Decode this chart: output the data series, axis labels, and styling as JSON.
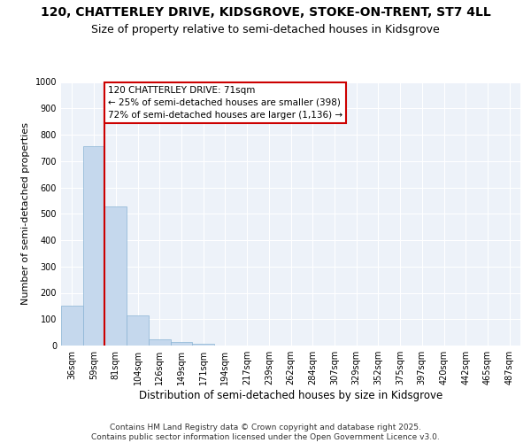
{
  "title": "120, CHATTERLEY DRIVE, KIDSGROVE, STOKE-ON-TRENT, ST7 4LL",
  "subtitle": "Size of property relative to semi-detached houses in Kidsgrove",
  "xlabel": "Distribution of semi-detached houses by size in Kidsgrove",
  "ylabel": "Number of semi-detached properties",
  "bin_labels": [
    "36sqm",
    "59sqm",
    "81sqm",
    "104sqm",
    "126sqm",
    "149sqm",
    "171sqm",
    "194sqm",
    "217sqm",
    "239sqm",
    "262sqm",
    "284sqm",
    "307sqm",
    "329sqm",
    "352sqm",
    "375sqm",
    "397sqm",
    "420sqm",
    "442sqm",
    "465sqm",
    "487sqm"
  ],
  "bar_values": [
    152,
    755,
    527,
    115,
    25,
    13,
    8,
    0,
    0,
    0,
    0,
    0,
    0,
    0,
    0,
    0,
    0,
    0,
    0,
    0,
    0
  ],
  "bar_color": "#c5d8ed",
  "bar_edge_color": "#8ab4d4",
  "highlight_box_text": "120 CHATTERLEY DRIVE: 71sqm\n← 25% of semi-detached houses are smaller (398)\n72% of semi-detached houses are larger (1,136) →",
  "box_color": "#ffffff",
  "box_edge_color": "#cc0000",
  "line_color": "#cc0000",
  "ylim": [
    0,
    1000
  ],
  "yticks": [
    0,
    100,
    200,
    300,
    400,
    500,
    600,
    700,
    800,
    900,
    1000
  ],
  "background_color": "#edf2f9",
  "footer_text": "Contains HM Land Registry data © Crown copyright and database right 2025.\nContains public sector information licensed under the Open Government Licence v3.0.",
  "title_fontsize": 10,
  "subtitle_fontsize": 9,
  "xlabel_fontsize": 8.5,
  "ylabel_fontsize": 8,
  "tick_fontsize": 7,
  "footer_fontsize": 6.5,
  "annotation_fontsize": 7.5
}
